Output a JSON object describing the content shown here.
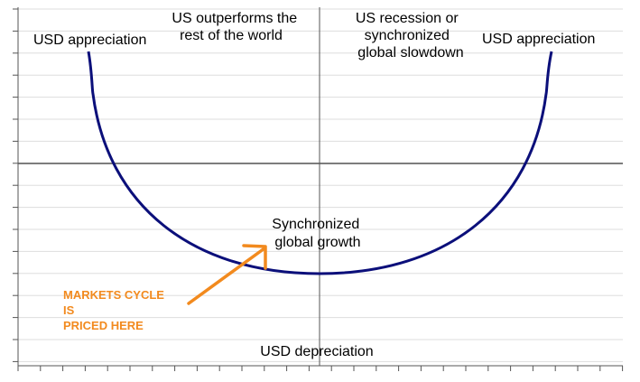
{
  "labels": {
    "top_left_corner": "USD appreciation",
    "top_left_center": [
      "US outperforms the",
      "rest of the world"
    ],
    "top_right_center": [
      "US recession or",
      "synchronized",
      "global slowdown"
    ],
    "top_right_corner": "USD appreciation",
    "bottom_center": "USD depreciation",
    "curve_bottom": [
      "Synchronized",
      "global growth"
    ]
  },
  "annotation": {
    "lines": [
      "MARKETS CYCLE",
      "IS",
      "PRICED HERE"
    ],
    "color": "#F28A1E"
  },
  "colors": {
    "curve": "#0B0F7A",
    "axes": "#555555",
    "grid": "#DDDDDD",
    "annotation": "#F28A1E"
  }
}
